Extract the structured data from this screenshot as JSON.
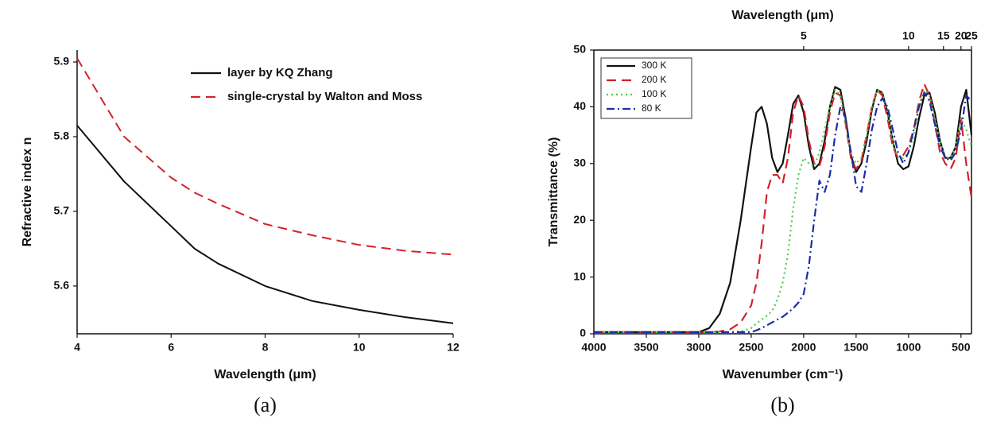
{
  "chart_data": [
    {
      "type": "line",
      "xlabel": "Wavelength (μm)",
      "ylabel": "Refractive index n",
      "caption": "(a)",
      "x": [
        4,
        5,
        6,
        6.5,
        7,
        8,
        9,
        10,
        11,
        12
      ],
      "series": [
        {
          "name": "layer by KQ Zhang",
          "color": "#111111",
          "linestyle": "solid",
          "values": [
            5.815,
            5.74,
            5.68,
            5.65,
            5.63,
            5.6,
            5.58,
            5.568,
            5.558,
            5.55
          ]
        },
        {
          "name": "single-crystal by Walton and Moss",
          "color": "#d2232a",
          "linestyle": "dashed",
          "values": [
            5.905,
            5.8,
            5.745,
            5.725,
            5.71,
            5.683,
            5.668,
            5.655,
            5.647,
            5.642
          ]
        }
      ],
      "xlim": [
        4,
        12
      ],
      "xticks": [
        4,
        6,
        8,
        10,
        12
      ],
      "ylim": [
        5.536,
        5.916
      ],
      "yticks": [
        5.6,
        5.7,
        5.8,
        5.9
      ],
      "box": false,
      "legend": "upper right"
    },
    {
      "type": "line",
      "xlabel": "Wavenumber (cm⁻¹)",
      "ylabel": "Transmittance (%)",
      "x2label": "Wavelength (μm)",
      "caption": "(b)",
      "x": [
        4000,
        3500,
        3000,
        2900,
        2800,
        2700,
        2600,
        2500,
        2450,
        2400,
        2350,
        2300,
        2250,
        2200,
        2150,
        2100,
        2050,
        2000,
        1950,
        1900,
        1850,
        1800,
        1750,
        1700,
        1650,
        1600,
        1550,
        1500,
        1450,
        1400,
        1350,
        1300,
        1250,
        1200,
        1150,
        1100,
        1050,
        1000,
        950,
        900,
        850,
        800,
        750,
        700,
        650,
        600,
        550,
        500,
        450,
        400
      ],
      "series": [
        {
          "name": "300 K",
          "color": "#111111",
          "linestyle": "solid",
          "values": [
            0.3,
            0.3,
            0.3,
            1,
            3.5,
            9,
            20,
            33,
            39,
            40,
            37,
            31,
            28.5,
            30,
            35,
            40.5,
            42,
            39,
            33,
            29,
            30,
            34,
            40,
            43.5,
            43,
            38,
            31.5,
            28.5,
            30,
            34,
            39.5,
            43,
            42.5,
            39,
            34,
            30,
            29,
            29.5,
            33,
            38,
            42,
            42.5,
            39,
            34,
            31,
            31,
            33,
            40,
            43,
            35
          ]
        },
        {
          "name": "200 K",
          "color": "#d2232a",
          "linestyle": "dashed",
          "values": [
            0.3,
            0.3,
            0.3,
            0.3,
            0.4,
            0.8,
            2,
            5,
            9,
            16,
            25,
            28,
            28,
            26.5,
            31,
            39,
            42,
            40,
            34,
            30,
            29.5,
            33,
            39,
            42.5,
            42,
            37,
            31,
            29,
            30.5,
            35,
            40,
            43,
            42,
            38,
            33,
            31,
            31.5,
            33,
            36,
            41,
            44,
            42,
            37,
            32,
            30,
            29,
            31,
            38,
            30,
            24
          ]
        },
        {
          "name": "100 K",
          "color": "#4dcc4d",
          "linestyle": "dotted",
          "values": [
            0.3,
            0.3,
            0.3,
            0.3,
            0.3,
            0.3,
            0.4,
            1,
            1.8,
            2.5,
            3.2,
            4,
            6,
            9,
            14,
            22,
            28,
            31,
            30,
            29.5,
            32,
            36,
            40,
            43,
            42,
            37,
            32,
            30,
            31,
            35,
            40,
            43,
            42.5,
            39,
            34,
            31,
            31,
            32,
            35,
            40,
            43,
            42,
            38,
            34,
            31,
            31,
            33,
            38,
            36,
            33
          ]
        },
        {
          "name": "80 K",
          "color": "#1c2ca8",
          "linestyle": "dashdot",
          "values": [
            0.3,
            0.3,
            0.3,
            0.3,
            0.3,
            0.3,
            0.3,
            0.3,
            0.6,
            1,
            1.5,
            2,
            2.5,
            3,
            3.7,
            4.5,
            5.5,
            7,
            12,
            20,
            27,
            25,
            28,
            35,
            40,
            38,
            32,
            26,
            25,
            30,
            36,
            40,
            41.5,
            40,
            36,
            32,
            30,
            32,
            36,
            40,
            42.5,
            41,
            37,
            33,
            31,
            30.5,
            32,
            36,
            42,
            41
          ]
        }
      ],
      "xlim": [
        4000,
        400
      ],
      "xticks": [
        4000,
        3500,
        3000,
        2500,
        2000,
        1500,
        1000,
        500
      ],
      "x2ticks": [
        {
          "value": 2000,
          "label": "5"
        },
        {
          "value": 1000,
          "label": "10"
        },
        {
          "value": 667,
          "label": "15"
        },
        {
          "value": 500,
          "label": "20"
        },
        {
          "value": 400,
          "label": "25"
        }
      ],
      "ylim": [
        0,
        50
      ],
      "yticks": [
        0,
        10,
        20,
        30,
        40,
        50
      ],
      "box": true,
      "legend": "upper left"
    }
  ]
}
